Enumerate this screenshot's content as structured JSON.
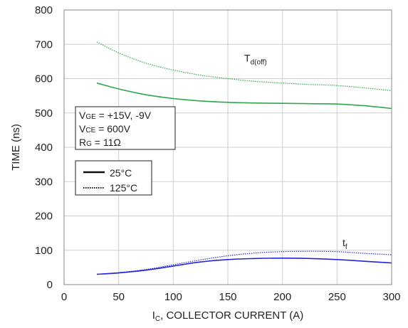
{
  "chart_data": {
    "type": "line",
    "xlabel": {
      "prefix": "I",
      "sub": "C",
      "rest": ", COLLECTOR CURRENT (A)"
    },
    "ylabel": "TIME (ns)",
    "xlim": [
      0,
      300
    ],
    "ylim": [
      0,
      800
    ],
    "xticks": [
      "0",
      "50",
      "100",
      "150",
      "200",
      "250",
      "300"
    ],
    "yticks": [
      "0",
      "100",
      "200",
      "300",
      "400",
      "500",
      "600",
      "700",
      "800"
    ],
    "grid": true,
    "conditions": [
      {
        "main": "V",
        "sub": "GE",
        "rest": " = +15V, -9V"
      },
      {
        "main": "V",
        "sub": "CE",
        "rest": " = 600V"
      },
      {
        "main": "R",
        "sub": "G",
        "rest": " = 11Ω"
      }
    ],
    "legend": [
      {
        "label": "25°C",
        "style": "solid"
      },
      {
        "label": "125°C",
        "style": "dotted"
      }
    ],
    "annotations": [
      {
        "main": "T",
        "sub": "d(off)",
        "at": [
          165,
          650
        ]
      },
      {
        "main": "t",
        "sub": "f",
        "at": [
          255,
          112
        ]
      }
    ],
    "series": [
      {
        "group": "Td(off)",
        "temp": "25°C",
        "color": "#2ea84a",
        "dash": "solid",
        "x": [
          30,
          50,
          75,
          100,
          125,
          150,
          175,
          200,
          225,
          250,
          275,
          300
        ],
        "y": [
          587,
          570,
          553,
          542,
          535,
          531,
          529,
          528,
          527,
          526,
          521,
          513
        ]
      },
      {
        "group": "Td(off)",
        "temp": "125°C",
        "color": "#2ea84a",
        "dash": "dotted",
        "x": [
          30,
          50,
          75,
          100,
          125,
          150,
          175,
          200,
          225,
          250,
          275,
          300
        ],
        "y": [
          707,
          675,
          645,
          625,
          610,
          600,
          592,
          587,
          583,
          580,
          573,
          565
        ]
      },
      {
        "group": "tf",
        "temp": "25°C",
        "color": "#2424d6",
        "dash": "solid",
        "x": [
          30,
          50,
          75,
          100,
          125,
          150,
          175,
          200,
          225,
          250,
          275,
          300
        ],
        "y": [
          30,
          34,
          42,
          54,
          66,
          73,
          76,
          77,
          76,
          73,
          68,
          63
        ]
      },
      {
        "group": "tf",
        "temp": "125°C",
        "color": "#2424d6",
        "dash": "dotted",
        "x": [
          30,
          50,
          75,
          100,
          125,
          150,
          175,
          200,
          225,
          250,
          275,
          300
        ],
        "y": [
          30,
          35,
          44,
          58,
          72,
          84,
          92,
          96,
          97,
          96,
          91,
          87
        ]
      }
    ]
  }
}
